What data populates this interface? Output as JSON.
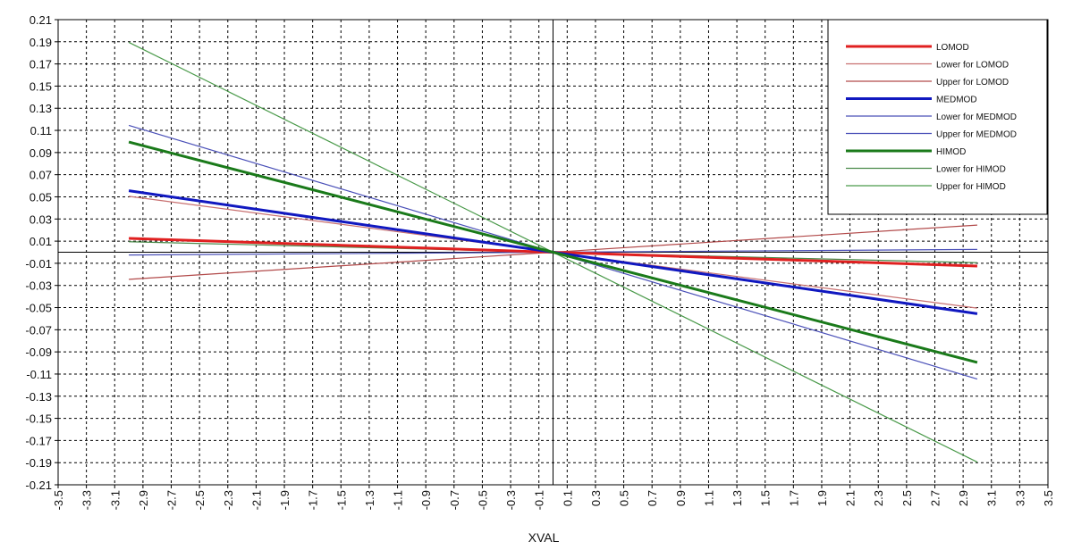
{
  "chart_data": {
    "type": "line",
    "title": "",
    "xlabel": "XVAL",
    "ylabel": "",
    "xlim": [
      -3.5,
      3.5
    ],
    "ylim": [
      -0.21,
      0.21
    ],
    "grid": true,
    "legend_position": "top-right",
    "xticks": [
      "-3.5",
      "-3.3",
      "-3.1",
      "-2.9",
      "-2.7",
      "-2.5",
      "-2.3",
      "-2.1",
      "-1.9",
      "-1.7",
      "-1.5",
      "-1.3",
      "-1.1",
      "-0.9",
      "-0.7",
      "-0.5",
      "-0.3",
      "-0.1",
      "0.1",
      "0.3",
      "0.5",
      "0.7",
      "0.9",
      "1.1",
      "1.3",
      "1.5",
      "1.7",
      "1.9",
      "2.1",
      "2.3",
      "2.5",
      "2.7",
      "2.9",
      "3.1",
      "3.3",
      "3.5"
    ],
    "yticks": [
      "0.21",
      "0.19",
      "0.17",
      "0.15",
      "0.13",
      "0.11",
      "0.09",
      "0.07",
      "0.05",
      "0.03",
      "0.01",
      "-0.01",
      "-0.03",
      "-0.05",
      "-0.07",
      "-0.09",
      "-0.11",
      "-0.13",
      "-0.15",
      "-0.17",
      "-0.19",
      "-0.21"
    ],
    "x": [
      -3.0,
      3.0
    ],
    "series": [
      {
        "name": "LOMOD",
        "values": [
          0.0125,
          -0.0125
        ],
        "color": "#e02020",
        "bold": true
      },
      {
        "name": "Lower for LOMOD",
        "values": [
          0.0505,
          -0.0505
        ],
        "color": "#c87070",
        "bold": false
      },
      {
        "name": "Upper for LOMOD",
        "values": [
          -0.0245,
          0.0245
        ],
        "color": "#b24a4a",
        "bold": false
      },
      {
        "name": "MEDMOD",
        "values": [
          0.0555,
          -0.0555
        ],
        "color": "#1018c0",
        "bold": true
      },
      {
        "name": "Lower for MEDMOD",
        "values": [
          0.1145,
          -0.1145
        ],
        "color": "#4a50b8",
        "bold": false
      },
      {
        "name": "Upper for MEDMOD",
        "values": [
          -0.0025,
          0.0025
        ],
        "color": "#4a50b8",
        "bold": false
      },
      {
        "name": "HIMOD",
        "values": [
          0.0995,
          -0.0995
        ],
        "color": "#1a7a1a",
        "bold": true
      },
      {
        "name": "Lower for HIMOD",
        "values": [
          0.0095,
          -0.0095
        ],
        "color": "#4a8a4a",
        "bold": false
      },
      {
        "name": "Upper for HIMOD",
        "values": [
          0.1895,
          -0.1895
        ],
        "color": "#4a9a4a",
        "bold": false
      }
    ]
  }
}
